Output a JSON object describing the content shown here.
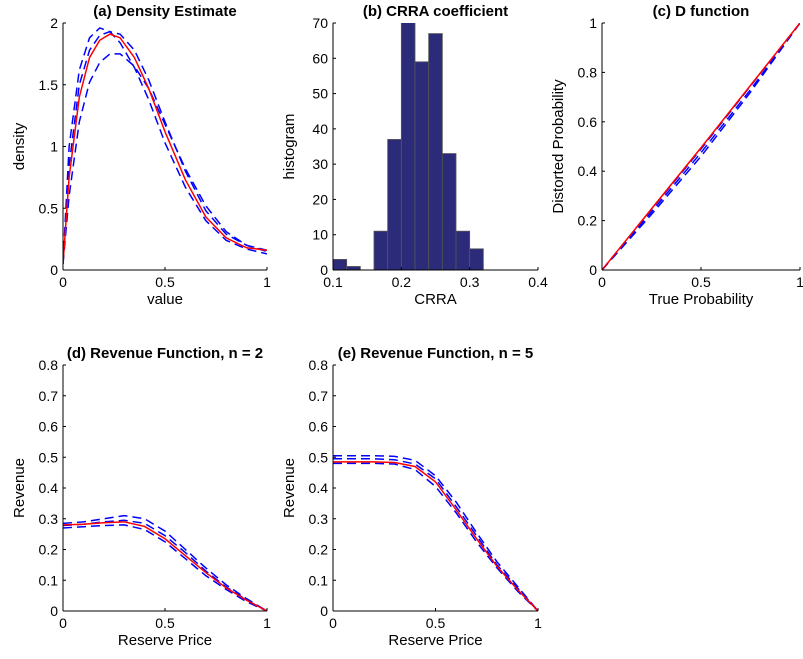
{
  "colors": {
    "main": "#ff0000",
    "band": "#0000ff",
    "bar": "#2b2b7a"
  },
  "chart_data": [
    {
      "id": "a",
      "type": "line",
      "title": "(a) Density Estimate",
      "xlabel": "value",
      "ylabel": "density",
      "xlim": [
        0,
        1
      ],
      "ylim": [
        0,
        2
      ],
      "xticks": [
        0,
        0.5,
        1
      ],
      "xtick_labels": [
        "0",
        "0.5",
        "1"
      ],
      "yticks": [
        0,
        0.5,
        1,
        1.5,
        2
      ],
      "ytick_labels": [
        "0",
        "0.5",
        "1",
        "1.5",
        "2"
      ],
      "series": [
        {
          "role": "main",
          "points": [
            [
              0,
              0.05
            ],
            [
              0.03,
              0.75
            ],
            [
              0.08,
              1.4
            ],
            [
              0.13,
              1.72
            ],
            [
              0.18,
              1.86
            ],
            [
              0.23,
              1.91
            ],
            [
              0.28,
              1.88
            ],
            [
              0.35,
              1.72
            ],
            [
              0.42,
              1.47
            ],
            [
              0.5,
              1.12
            ],
            [
              0.6,
              0.73
            ],
            [
              0.7,
              0.43
            ],
            [
              0.8,
              0.26
            ],
            [
              0.9,
              0.18
            ],
            [
              1,
              0.16
            ]
          ]
        },
        {
          "role": "band",
          "points": [
            [
              0,
              0.05
            ],
            [
              0.03,
              1.0
            ],
            [
              0.08,
              1.62
            ],
            [
              0.13,
              1.88
            ],
            [
              0.18,
              1.96
            ],
            [
              0.23,
              1.93
            ],
            [
              0.28,
              1.84
            ],
            [
              0.35,
              1.64
            ],
            [
              0.42,
              1.38
            ],
            [
              0.5,
              1.03
            ],
            [
              0.6,
              0.67
            ],
            [
              0.7,
              0.4
            ],
            [
              0.8,
              0.24
            ],
            [
              0.9,
              0.17
            ],
            [
              1,
              0.13
            ]
          ]
        },
        {
          "role": "band",
          "points": [
            [
              0,
              0.05
            ],
            [
              0.03,
              0.6
            ],
            [
              0.08,
              1.2
            ],
            [
              0.13,
              1.52
            ],
            [
              0.18,
              1.68
            ],
            [
              0.23,
              1.75
            ],
            [
              0.28,
              1.75
            ],
            [
              0.35,
              1.65
            ],
            [
              0.42,
              1.47
            ],
            [
              0.5,
              1.18
            ],
            [
              0.6,
              0.82
            ],
            [
              0.7,
              0.52
            ],
            [
              0.8,
              0.31
            ],
            [
              0.9,
              0.2
            ],
            [
              1,
              0.16
            ]
          ]
        },
        {
          "role": "band",
          "points": [
            [
              0,
              0.05
            ],
            [
              0.03,
              0.85
            ],
            [
              0.08,
              1.5
            ],
            [
              0.13,
              1.78
            ],
            [
              0.18,
              1.9
            ],
            [
              0.23,
              1.93
            ],
            [
              0.28,
              1.91
            ],
            [
              0.35,
              1.78
            ],
            [
              0.42,
              1.54
            ],
            [
              0.5,
              1.2
            ],
            [
              0.6,
              0.8
            ],
            [
              0.7,
              0.48
            ],
            [
              0.8,
              0.29
            ],
            [
              0.9,
              0.2
            ],
            [
              1,
              0.15
            ]
          ]
        }
      ]
    },
    {
      "id": "b",
      "type": "bar",
      "title": "(b) CRRA coefficient",
      "xlabel": "CRRA",
      "ylabel": "histogram",
      "xlim": [
        0.1,
        0.4
      ],
      "ylim": [
        0,
        70
      ],
      "xticks": [
        0.1,
        0.2,
        0.3,
        0.4
      ],
      "xtick_labels": [
        "0.1",
        "0.2",
        "0.3",
        "0.4"
      ],
      "yticks": [
        0,
        10,
        20,
        30,
        40,
        50,
        60,
        70
      ],
      "ytick_labels": [
        "0",
        "10",
        "20",
        "30",
        "40",
        "50",
        "60",
        "70"
      ],
      "bins": [
        {
          "x0": 0.1,
          "x1": 0.12,
          "count": 3
        },
        {
          "x0": 0.12,
          "x1": 0.14,
          "count": 1
        },
        {
          "x0": 0.14,
          "x1": 0.16,
          "count": 0
        },
        {
          "x0": 0.16,
          "x1": 0.18,
          "count": 11
        },
        {
          "x0": 0.18,
          "x1": 0.2,
          "count": 37
        },
        {
          "x0": 0.2,
          "x1": 0.22,
          "count": 72
        },
        {
          "x0": 0.22,
          "x1": 0.24,
          "count": 59
        },
        {
          "x0": 0.24,
          "x1": 0.26,
          "count": 67
        },
        {
          "x0": 0.26,
          "x1": 0.28,
          "count": 33
        },
        {
          "x0": 0.28,
          "x1": 0.3,
          "count": 11
        },
        {
          "x0": 0.3,
          "x1": 0.32,
          "count": 6
        }
      ]
    },
    {
      "id": "c",
      "type": "line",
      "title": "(c) D function",
      "xlabel": "True Probability",
      "ylabel": "Distorted Probability",
      "xlim": [
        0,
        1
      ],
      "ylim": [
        0,
        1
      ],
      "xticks": [
        0,
        0.5,
        1
      ],
      "xtick_labels": [
        "0",
        "0.5",
        "1"
      ],
      "yticks": [
        0,
        0.2,
        0.4,
        0.6,
        0.8,
        1
      ],
      "ytick_labels": [
        "0",
        "0.2",
        "0.4",
        "0.6",
        "0.8",
        "1"
      ],
      "series": [
        {
          "role": "main",
          "points": [
            [
              0,
              0
            ],
            [
              0.5,
              0.495
            ],
            [
              1,
              1
            ]
          ]
        },
        {
          "role": "band",
          "points": [
            [
              0,
              0
            ],
            [
              0.25,
              0.235
            ],
            [
              0.5,
              0.475
            ],
            [
              0.75,
              0.73
            ],
            [
              1,
              1
            ]
          ]
        },
        {
          "role": "band",
          "points": [
            [
              0,
              0
            ],
            [
              0.25,
              0.225
            ],
            [
              0.5,
              0.46
            ],
            [
              0.75,
              0.72
            ],
            [
              1,
              1
            ]
          ]
        },
        {
          "role": "band",
          "points": [
            [
              0,
              0
            ],
            [
              0.25,
              0.245
            ],
            [
              0.5,
              0.49
            ],
            [
              0.75,
              0.745
            ],
            [
              1,
              1
            ]
          ]
        }
      ]
    },
    {
      "id": "d",
      "type": "line",
      "title": "(d) Revenue Function, n = 2",
      "xlabel": "Reserve Price",
      "ylabel": "Revenue",
      "xlim": [
        0,
        1
      ],
      "ylim": [
        0,
        0.8
      ],
      "xticks": [
        0,
        0.5,
        1
      ],
      "xtick_labels": [
        "0",
        "0.5",
        "1"
      ],
      "yticks": [
        0,
        0.1,
        0.2,
        0.3,
        0.4,
        0.5,
        0.6,
        0.7,
        0.8
      ],
      "ytick_labels": [
        "0",
        "0.1",
        "0.2",
        "0.3",
        "0.4",
        "0.5",
        "0.6",
        "0.7",
        "0.8"
      ],
      "series": [
        {
          "role": "main",
          "points": [
            [
              0,
              0.28
            ],
            [
              0.1,
              0.282
            ],
            [
              0.2,
              0.287
            ],
            [
              0.3,
              0.29
            ],
            [
              0.4,
              0.275
            ],
            [
              0.5,
              0.235
            ],
            [
              0.6,
              0.18
            ],
            [
              0.7,
              0.125
            ],
            [
              0.8,
              0.075
            ],
            [
              0.9,
              0.035
            ],
            [
              1,
              0
            ]
          ]
        },
        {
          "role": "band",
          "points": [
            [
              0,
              0.285
            ],
            [
              0.1,
              0.29
            ],
            [
              0.2,
              0.3
            ],
            [
              0.3,
              0.31
            ],
            [
              0.4,
              0.3
            ],
            [
              0.5,
              0.26
            ],
            [
              0.6,
              0.2
            ],
            [
              0.7,
              0.14
            ],
            [
              0.8,
              0.085
            ],
            [
              0.9,
              0.04
            ],
            [
              1,
              0
            ]
          ]
        },
        {
          "role": "band",
          "points": [
            [
              0,
              0.27
            ],
            [
              0.1,
              0.274
            ],
            [
              0.2,
              0.278
            ],
            [
              0.3,
              0.28
            ],
            [
              0.4,
              0.265
            ],
            [
              0.5,
              0.225
            ],
            [
              0.6,
              0.17
            ],
            [
              0.7,
              0.115
            ],
            [
              0.8,
              0.07
            ],
            [
              0.9,
              0.03
            ],
            [
              1,
              0
            ]
          ]
        },
        {
          "role": "band",
          "points": [
            [
              0,
              0.278
            ],
            [
              0.1,
              0.282
            ],
            [
              0.2,
              0.29
            ],
            [
              0.3,
              0.295
            ],
            [
              0.4,
              0.285
            ],
            [
              0.5,
              0.245
            ],
            [
              0.6,
              0.19
            ],
            [
              0.7,
              0.13
            ],
            [
              0.8,
              0.078
            ],
            [
              0.9,
              0.036
            ],
            [
              1,
              0
            ]
          ]
        }
      ]
    },
    {
      "id": "e",
      "type": "line",
      "title": "(e) Revenue Function, n = 5",
      "xlabel": "Reserve Price",
      "ylabel": "Revenue",
      "xlim": [
        0,
        1
      ],
      "ylim": [
        0,
        0.8
      ],
      "xticks": [
        0,
        0.5,
        1
      ],
      "xtick_labels": [
        "0",
        "0.5",
        "1"
      ],
      "yticks": [
        0,
        0.1,
        0.2,
        0.3,
        0.4,
        0.5,
        0.6,
        0.7,
        0.8
      ],
      "ytick_labels": [
        "0",
        "0.1",
        "0.2",
        "0.3",
        "0.4",
        "0.5",
        "0.6",
        "0.7",
        "0.8"
      ],
      "series": [
        {
          "role": "main",
          "points": [
            [
              0,
              0.485
            ],
            [
              0.1,
              0.485
            ],
            [
              0.2,
              0.485
            ],
            [
              0.3,
              0.483
            ],
            [
              0.4,
              0.47
            ],
            [
              0.5,
              0.42
            ],
            [
              0.6,
              0.33
            ],
            [
              0.7,
              0.235
            ],
            [
              0.8,
              0.145
            ],
            [
              0.9,
              0.07
            ],
            [
              1,
              0
            ]
          ]
        },
        {
          "role": "band",
          "points": [
            [
              0,
              0.505
            ],
            [
              0.1,
              0.505
            ],
            [
              0.2,
              0.505
            ],
            [
              0.3,
              0.503
            ],
            [
              0.4,
              0.49
            ],
            [
              0.5,
              0.44
            ],
            [
              0.6,
              0.355
            ],
            [
              0.7,
              0.255
            ],
            [
              0.8,
              0.16
            ],
            [
              0.9,
              0.08
            ],
            [
              1,
              0
            ]
          ]
        },
        {
          "role": "band",
          "points": [
            [
              0,
              0.48
            ],
            [
              0.1,
              0.48
            ],
            [
              0.2,
              0.48
            ],
            [
              0.3,
              0.478
            ],
            [
              0.4,
              0.46
            ],
            [
              0.5,
              0.405
            ],
            [
              0.6,
              0.32
            ],
            [
              0.7,
              0.225
            ],
            [
              0.8,
              0.14
            ],
            [
              0.9,
              0.065
            ],
            [
              1,
              0
            ]
          ]
        },
        {
          "role": "band",
          "points": [
            [
              0,
              0.495
            ],
            [
              0.1,
              0.495
            ],
            [
              0.2,
              0.495
            ],
            [
              0.3,
              0.492
            ],
            [
              0.4,
              0.478
            ],
            [
              0.5,
              0.43
            ],
            [
              0.6,
              0.34
            ],
            [
              0.7,
              0.245
            ],
            [
              0.8,
              0.15
            ],
            [
              0.9,
              0.075
            ],
            [
              1,
              0
            ]
          ]
        }
      ]
    }
  ]
}
